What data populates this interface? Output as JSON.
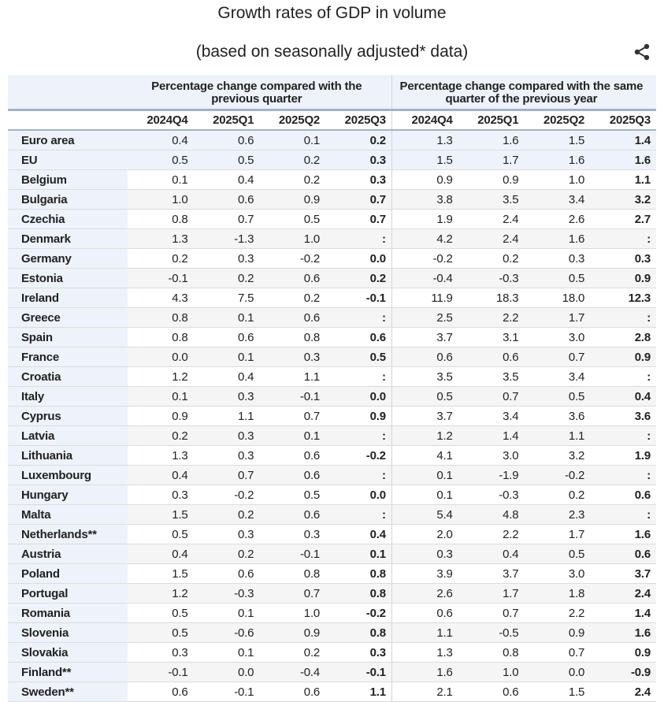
{
  "title": "Growth rates of GDP in volume",
  "subtitle": "(based on seasonally adjusted* data)",
  "share_icon": "share-icon",
  "table": {
    "group_headers": [
      "Percentage change compared with the previous quarter",
      "Percentage change compared with the same quarter of the previous year"
    ],
    "quarters": [
      "2024Q4",
      "2025Q1",
      "2025Q2",
      "2025Q3",
      "2024Q4",
      "2025Q1",
      "2025Q2",
      "2025Q3"
    ],
    "rows": [
      {
        "label": "Euro area",
        "values": [
          "0.4",
          "0.6",
          "0.1",
          "0.2",
          "1.3",
          "1.6",
          "1.5",
          "1.4"
        ]
      },
      {
        "label": "EU",
        "values": [
          "0.5",
          "0.5",
          "0.2",
          "0.3",
          "1.5",
          "1.7",
          "1.6",
          "1.6"
        ]
      },
      {
        "label": "Belgium",
        "values": [
          "0.1",
          "0.4",
          "0.2",
          "0.3",
          "0.9",
          "0.9",
          "1.0",
          "1.1"
        ]
      },
      {
        "label": "Bulgaria",
        "values": [
          "1.0",
          "0.6",
          "0.9",
          "0.7",
          "3.8",
          "3.5",
          "3.4",
          "3.2"
        ]
      },
      {
        "label": "Czechia",
        "values": [
          "0.8",
          "0.7",
          "0.5",
          "0.7",
          "1.9",
          "2.4",
          "2.6",
          "2.7"
        ]
      },
      {
        "label": "Denmark",
        "values": [
          "1.3",
          "-1.3",
          "1.0",
          ":",
          "4.2",
          "2.4",
          "1.6",
          ":"
        ]
      },
      {
        "label": "Germany",
        "values": [
          "0.2",
          "0.3",
          "-0.2",
          "0.0",
          "-0.2",
          "0.2",
          "0.3",
          "0.3"
        ]
      },
      {
        "label": "Estonia",
        "values": [
          "-0.1",
          "0.2",
          "0.6",
          "0.2",
          "-0.4",
          "-0.3",
          "0.5",
          "0.9"
        ]
      },
      {
        "label": "Ireland",
        "values": [
          "4.3",
          "7.5",
          "0.2",
          "-0.1",
          "11.9",
          "18.3",
          "18.0",
          "12.3"
        ]
      },
      {
        "label": "Greece",
        "values": [
          "0.8",
          "0.1",
          "0.6",
          ":",
          "2.5",
          "2.2",
          "1.7",
          ":"
        ]
      },
      {
        "label": "Spain",
        "values": [
          "0.8",
          "0.6",
          "0.8",
          "0.6",
          "3.7",
          "3.1",
          "3.0",
          "2.8"
        ]
      },
      {
        "label": "France",
        "values": [
          "0.0",
          "0.1",
          "0.3",
          "0.5",
          "0.6",
          "0.6",
          "0.7",
          "0.9"
        ]
      },
      {
        "label": "Croatia",
        "values": [
          "1.2",
          "0.4",
          "1.1",
          ":",
          "3.5",
          "3.5",
          "3.4",
          ":"
        ]
      },
      {
        "label": "Italy",
        "values": [
          "0.1",
          "0.3",
          "-0.1",
          "0.0",
          "0.5",
          "0.7",
          "0.5",
          "0.4"
        ]
      },
      {
        "label": "Cyprus",
        "values": [
          "0.9",
          "1.1",
          "0.7",
          "0.9",
          "3.7",
          "3.4",
          "3.6",
          "3.6"
        ]
      },
      {
        "label": "Latvia",
        "values": [
          "0.2",
          "0.3",
          "0.1",
          ":",
          "1.2",
          "1.4",
          "1.1",
          ":"
        ]
      },
      {
        "label": "Lithuania",
        "values": [
          "1.3",
          "0.3",
          "0.6",
          "-0.2",
          "4.1",
          "3.0",
          "3.2",
          "1.9"
        ]
      },
      {
        "label": "Luxembourg",
        "values": [
          "0.4",
          "0.7",
          "0.6",
          ":",
          "0.1",
          "-1.9",
          "-0.2",
          ":"
        ]
      },
      {
        "label": "Hungary",
        "values": [
          "0.3",
          "-0.2",
          "0.5",
          "0.0",
          "0.1",
          "-0.3",
          "0.2",
          "0.6"
        ]
      },
      {
        "label": "Malta",
        "values": [
          "1.5",
          "0.2",
          "0.6",
          ":",
          "5.4",
          "4.8",
          "2.3",
          ":"
        ]
      },
      {
        "label": "Netherlands**",
        "values": [
          "0.5",
          "0.3",
          "0.3",
          "0.4",
          "2.0",
          "2.2",
          "1.7",
          "1.6"
        ]
      },
      {
        "label": "Austria",
        "values": [
          "0.4",
          "0.2",
          "-0.1",
          "0.1",
          "0.3",
          "0.4",
          "0.5",
          "0.6"
        ]
      },
      {
        "label": "Poland",
        "values": [
          "1.5",
          "0.6",
          "0.8",
          "0.8",
          "3.9",
          "3.7",
          "3.0",
          "3.7"
        ]
      },
      {
        "label": "Portugal",
        "values": [
          "1.2",
          "-0.3",
          "0.7",
          "0.8",
          "2.6",
          "1.7",
          "1.8",
          "2.4"
        ]
      },
      {
        "label": "Romania",
        "values": [
          "0.5",
          "0.1",
          "1.0",
          "-0.2",
          "0.6",
          "0.7",
          "2.2",
          "1.4"
        ]
      },
      {
        "label": "Slovenia",
        "values": [
          "0.5",
          "-0.6",
          "0.9",
          "0.8",
          "1.1",
          "-0.5",
          "0.9",
          "1.6"
        ]
      },
      {
        "label": "Slovakia",
        "values": [
          "0.3",
          "0.1",
          "0.2",
          "0.3",
          "1.3",
          "0.8",
          "0.7",
          "0.9"
        ]
      },
      {
        "label": "Finland**",
        "values": [
          "-0.1",
          "0.0",
          "-0.4",
          "-0.1",
          "1.6",
          "1.0",
          "0.0",
          "-0.9"
        ]
      },
      {
        "label": "Sweden**",
        "values": [
          "0.6",
          "-0.1",
          "0.6",
          "1.1",
          "2.1",
          "0.6",
          "1.5",
          "2.4"
        ]
      }
    ]
  }
}
